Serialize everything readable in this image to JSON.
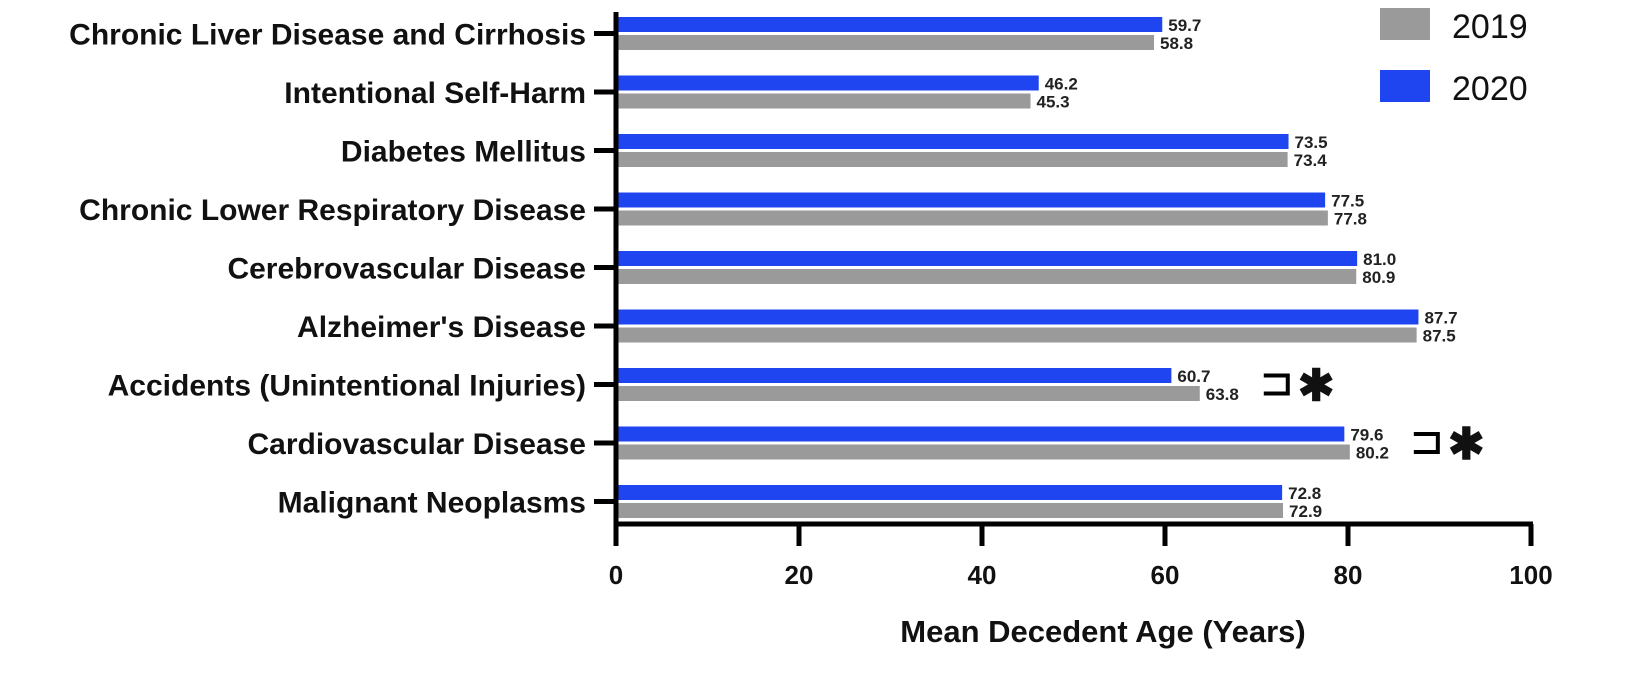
{
  "chart_data": {
    "type": "bar",
    "orientation": "horizontal",
    "xlabel": "Mean Decedent Age (Years)",
    "xlim": [
      0,
      100
    ],
    "xticks": [
      "0",
      "20",
      "40",
      "60",
      "80",
      "100"
    ],
    "grid": false,
    "legend_position": "top-right",
    "categories": [
      "Chronic Liver Disease and Cirrhosis",
      "Intentional Self-Harm",
      "Diabetes Mellitus",
      "Chronic Lower Respiratory Disease",
      "Cerebrovascular Disease",
      "Alzheimer's Disease",
      "Accidents (Unintentional Injuries)",
      "Cardiovascular Disease",
      "Malignant Neoplasms"
    ],
    "series": [
      {
        "name": "2020",
        "color": "#1f45f0",
        "values": [
          59.7,
          46.2,
          73.5,
          77.5,
          81.0,
          87.7,
          60.7,
          79.6,
          72.8
        ],
        "labels": [
          "59.7",
          "46.2",
          "73.5",
          "77.5",
          "81.0",
          "87.7",
          "60.7",
          "79.6",
          "72.8"
        ]
      },
      {
        "name": "2019",
        "color": "#9a9a9a",
        "values": [
          58.8,
          45.3,
          73.4,
          77.8,
          80.9,
          87.5,
          63.8,
          80.2,
          72.9
        ],
        "labels": [
          "58.8",
          "45.3",
          "73.4",
          "77.8",
          "80.9",
          "87.5",
          "63.8",
          "80.2",
          "72.9"
        ]
      }
    ],
    "significance": [
      {
        "category": "Accidents (Unintentional Injuries)",
        "marker": "✱"
      },
      {
        "category": "Cardiovascular Disease",
        "marker": "✱"
      }
    ]
  }
}
